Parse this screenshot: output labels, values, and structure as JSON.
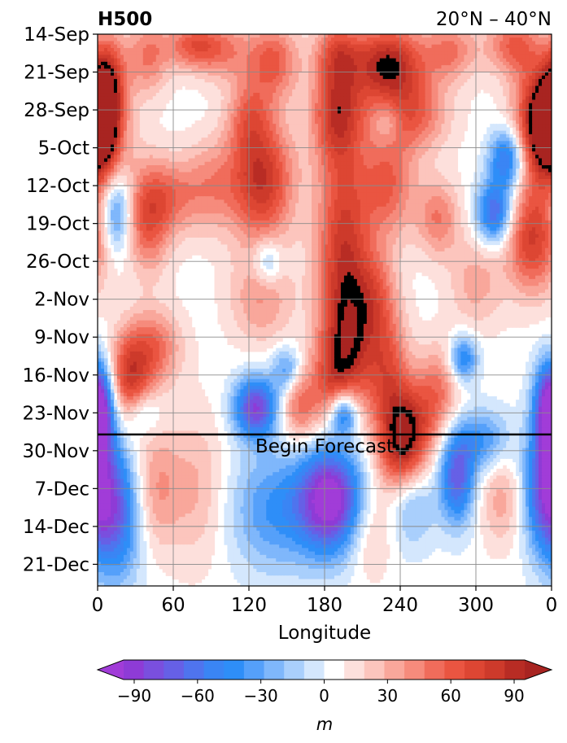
{
  "chart_data": {
    "type": "heatmap",
    "title_left": "H500",
    "title_right": "20°N – 40°N",
    "xlabel": "Longitude",
    "colorbar_label": "m",
    "x_ticks": [
      "0",
      "60",
      "120",
      "180",
      "240",
      "300",
      "0"
    ],
    "x_tick_values": [
      0,
      60,
      120,
      180,
      240,
      300,
      360
    ],
    "xlim": [
      0,
      360
    ],
    "y_ticks": [
      "14-Sep",
      "21-Sep",
      "28-Sep",
      "5-Oct",
      "12-Oct",
      "19-Oct",
      "26-Oct",
      "2-Nov",
      "9-Nov",
      "16-Nov",
      "23-Nov",
      "30-Nov",
      "7-Dec",
      "14-Dec",
      "21-Dec"
    ],
    "ylim_days": [
      0,
      102
    ],
    "forecast_label": "Begin Forecast",
    "forecast_start_day": 74,
    "colorbar_ticks": [
      "−90",
      "−60",
      "−30",
      "0",
      "30",
      "60",
      "90"
    ],
    "colorbar_tick_values": [
      -90,
      -60,
      -30,
      0,
      30,
      60,
      90
    ],
    "levels": [
      -105,
      -95,
      -85,
      -75,
      -65,
      -55,
      -45,
      -35,
      -25,
      -15,
      -5,
      5,
      15,
      25,
      35,
      45,
      55,
      65,
      75,
      85,
      95,
      105
    ],
    "colors": [
      "#8e3bd6",
      "#7a4fde",
      "#6660e6",
      "#4f74ee",
      "#3a85f4",
      "#2e8ef8",
      "#55a0fa",
      "#7fb7fb",
      "#a9cffc",
      "#d4e7fd",
      "#ffffff",
      "#fde0dc",
      "#fcc5bd",
      "#f9a79b",
      "#f68b7c",
      "#f06c5b",
      "#ea5541",
      "#dd4633",
      "#cd3a2b",
      "#b82c24"
    ],
    "extend_min_color": "#a13cd8",
    "extend_max_color": "#a82421",
    "features": [
      {
        "lon": 10,
        "day": 8,
        "amp": 55,
        "slon": 10,
        "sday": 6
      },
      {
        "lon": 40,
        "day": 4,
        "amp": 45,
        "slon": 12,
        "sday": 5
      },
      {
        "lon": 75,
        "day": 2,
        "amp": 50,
        "slon": 15,
        "sday": 3
      },
      {
        "lon": 100,
        "day": 3,
        "amp": 40,
        "slon": 18,
        "sday": 4
      },
      {
        "lon": 140,
        "day": 5,
        "amp": 55,
        "slon": 14,
        "sday": 5
      },
      {
        "lon": 190,
        "day": 3,
        "amp": 45,
        "slon": 12,
        "sday": 4
      },
      {
        "lon": 230,
        "day": 6,
        "amp": 65,
        "slon": 20,
        "sday": 6
      },
      {
        "lon": 280,
        "day": 3,
        "amp": 45,
        "slon": 15,
        "sday": 4
      },
      {
        "lon": 330,
        "day": 2,
        "amp": 55,
        "slon": 15,
        "sday": 4
      },
      {
        "lon": 350,
        "day": 12,
        "amp": 45,
        "slon": 12,
        "sday": 6
      },
      {
        "lon": 4,
        "day": 14,
        "amp": 55,
        "slon": 8,
        "sday": 7
      },
      {
        "lon": 120,
        "day": 15,
        "amp": 40,
        "slon": 12,
        "sday": 5
      },
      {
        "lon": 190,
        "day": 14,
        "amp": 75,
        "slon": 14,
        "sday": 7
      },
      {
        "lon": 250,
        "day": 15,
        "amp": 50,
        "slon": 20,
        "sday": 5
      },
      {
        "lon": 230,
        "day": 16,
        "amp": -30,
        "slon": 8,
        "sday": 3
      },
      {
        "lon": 355,
        "day": 19,
        "amp": 85,
        "slon": 18,
        "sday": 7
      },
      {
        "lon": 0,
        "day": 18,
        "amp": 45,
        "slon": 10,
        "sday": 5
      },
      {
        "lon": 130,
        "day": 27,
        "amp": 85,
        "slon": 18,
        "sday": 8
      },
      {
        "lon": 60,
        "day": 30,
        "amp": 40,
        "slon": 15,
        "sday": 5
      },
      {
        "lon": 40,
        "day": 34,
        "amp": 60,
        "slon": 12,
        "sday": 7
      },
      {
        "lon": 90,
        "day": 28,
        "amp": 35,
        "slon": 15,
        "sday": 6
      },
      {
        "lon": 15,
        "day": 33,
        "amp": -55,
        "slon": 8,
        "sday": 5
      },
      {
        "lon": 230,
        "day": 28,
        "amp": 55,
        "slon": 15,
        "sday": 7
      },
      {
        "lon": 270,
        "day": 34,
        "amp": 45,
        "slon": 12,
        "sday": 5
      },
      {
        "lon": 315,
        "day": 33,
        "amp": -80,
        "slon": 10,
        "sday": 4
      },
      {
        "lon": 345,
        "day": 38,
        "amp": 75,
        "slon": 15,
        "sday": 7
      },
      {
        "lon": 195,
        "day": 40,
        "amp": 80,
        "slon": 15,
        "sday": 14
      },
      {
        "lon": 200,
        "day": 58,
        "amp": 60,
        "slon": 15,
        "sday": 8
      },
      {
        "lon": 220,
        "day": 48,
        "amp": 40,
        "slon": 12,
        "sday": 6
      },
      {
        "lon": 130,
        "day": 49,
        "amp": 35,
        "slon": 18,
        "sday": 6
      },
      {
        "lon": 300,
        "day": 46,
        "amp": 30,
        "slon": 15,
        "sday": 6
      },
      {
        "lon": 230,
        "day": 62,
        "amp": 55,
        "slon": 12,
        "sday": 8
      },
      {
        "lon": 245,
        "day": 73,
        "amp": 85,
        "slon": 14,
        "sday": 6
      },
      {
        "lon": 270,
        "day": 66,
        "amp": 45,
        "slon": 12,
        "sday": 6
      },
      {
        "lon": 25,
        "day": 64,
        "amp": 75,
        "slon": 12,
        "sday": 6
      },
      {
        "lon": 45,
        "day": 58,
        "amp": 50,
        "slon": 15,
        "sday": 5
      },
      {
        "lon": 160,
        "day": 69,
        "amp": 50,
        "slon": 10,
        "sday": 5
      },
      {
        "lon": 185,
        "day": 65,
        "amp": 40,
        "slon": 12,
        "sday": 6
      },
      {
        "lon": 0,
        "day": 69,
        "amp": -75,
        "slon": 9,
        "sday": 6
      },
      {
        "lon": 360,
        "day": 69,
        "amp": -60,
        "slon": 9,
        "sday": 6
      },
      {
        "lon": 125,
        "day": 69,
        "amp": -95,
        "slon": 12,
        "sday": 4
      },
      {
        "lon": 195,
        "day": 70,
        "amp": -80,
        "slon": 8,
        "sday": 3
      },
      {
        "lon": 150,
        "day": 62,
        "amp": -45,
        "slon": 8,
        "sday": 3
      },
      {
        "lon": 35,
        "day": 70,
        "amp": -35,
        "slon": 10,
        "sday": 3
      },
      {
        "lon": 290,
        "day": 60,
        "amp": -60,
        "slon": 8,
        "sday": 3
      },
      {
        "lon": 305,
        "day": 75,
        "amp": -45,
        "slon": 15,
        "sday": 4
      },
      {
        "lon": 325,
        "day": 23,
        "amp": -80,
        "slon": 10,
        "sday": 4
      },
      {
        "lon": 135,
        "day": 42,
        "amp": -40,
        "slon": 8,
        "sday": 3
      },
      {
        "lon": 230,
        "day": 5,
        "amp": 30,
        "slon": 20,
        "sday": 4
      },
      {
        "lon": 185,
        "day": 86,
        "amp": -115,
        "slon": 18,
        "sday": 7
      },
      {
        "lon": 140,
        "day": 88,
        "amp": -45,
        "slon": 25,
        "sday": 8
      },
      {
        "lon": 15,
        "day": 88,
        "amp": -80,
        "slon": 15,
        "sday": 9
      },
      {
        "lon": 355,
        "day": 84,
        "amp": -80,
        "slon": 12,
        "sday": 8
      },
      {
        "lon": 285,
        "day": 82,
        "amp": -80,
        "slon": 10,
        "sday": 6
      },
      {
        "lon": 250,
        "day": 86,
        "amp": -35,
        "slon": 12,
        "sday": 6
      },
      {
        "lon": 240,
        "day": 79,
        "amp": 40,
        "slon": 14,
        "sday": 5
      },
      {
        "lon": 45,
        "day": 84,
        "amp": 40,
        "slon": 15,
        "sday": 8
      },
      {
        "lon": 80,
        "day": 84,
        "amp": 25,
        "slon": 15,
        "sday": 10
      },
      {
        "lon": 320,
        "day": 86,
        "amp": 30,
        "slon": 12,
        "sday": 6
      },
      {
        "lon": 215,
        "day": 92,
        "amp": 25,
        "slon": 12,
        "sday": 6
      }
    ]
  }
}
